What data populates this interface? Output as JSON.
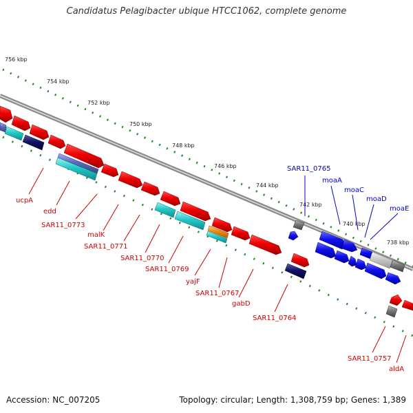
{
  "title": "Candidatus Pelagibacter ubique HTCC1062, complete genome",
  "footer": {
    "accession": "Accession: NC_007205",
    "summary": "Topology: circular; Length: 1,308,759 bp; Genes: 1,389"
  },
  "colors": {
    "backbone": "#8a8a8a",
    "ruler": "#1f8a1f",
    "reverse_label": "#cc0000",
    "forward_label": "#0000cc"
  },
  "ruler_ticks": [
    "756 kbp",
    "754 kbp",
    "752 kbp",
    "750 kbp",
    "748 kbp",
    "746 kbp",
    "744 kbp",
    "742 kbp",
    "740 kbp",
    "738 kbp"
  ],
  "gene_labels": [
    {
      "text": "ucpA",
      "strand": "reverse"
    },
    {
      "text": "edd",
      "strand": "reverse"
    },
    {
      "text": "SAR11_0773",
      "strand": "reverse"
    },
    {
      "text": "malK",
      "strand": "reverse"
    },
    {
      "text": "SAR11_0771",
      "strand": "reverse"
    },
    {
      "text": "SAR11_0770",
      "strand": "reverse"
    },
    {
      "text": "SAR11_0769",
      "strand": "reverse"
    },
    {
      "text": "yajF",
      "strand": "reverse"
    },
    {
      "text": "SAR11_0767",
      "strand": "reverse"
    },
    {
      "text": "gabD",
      "strand": "reverse"
    },
    {
      "text": "SAR11_0764",
      "strand": "reverse"
    },
    {
      "text": "SAR11_0757",
      "strand": "reverse"
    },
    {
      "text": "aldA",
      "strand": "reverse"
    },
    {
      "text": "SAR11_0765",
      "strand": "forward"
    },
    {
      "text": "moaA",
      "strand": "forward"
    },
    {
      "text": "moaC",
      "strand": "forward"
    },
    {
      "text": "moaD",
      "strand": "forward"
    },
    {
      "text": "moaE",
      "strand": "forward"
    }
  ]
}
